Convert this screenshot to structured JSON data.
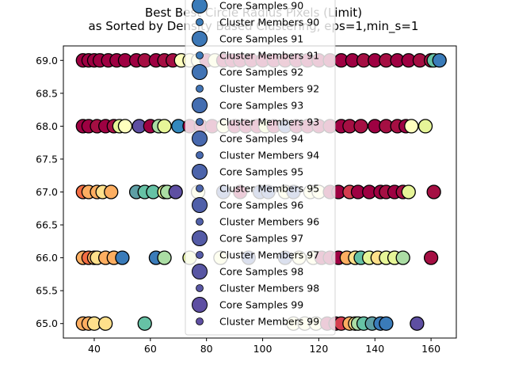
{
  "chart_data": {
    "type": "scatter",
    "title": "Best Best Circle Radius Pixels (Limit)",
    "subtitle": "as Sorted by Density Based Clustering, eps=1,min_s=1",
    "xlabel": "",
    "ylabel": "",
    "xlim": [
      29,
      169
    ],
    "ylim": [
      64.78,
      69.22
    ],
    "x_ticks": [
      "40",
      "60",
      "80",
      "100",
      "120",
      "140",
      "160"
    ],
    "y_ticks": [
      "65.0",
      "65.5",
      "66.0",
      "66.5",
      "67.0",
      "67.5",
      "68.0",
      "68.5",
      "69.0"
    ],
    "grid": false,
    "legend_placement": "upper-center",
    "legend": [
      {
        "label": "Core Samples 90",
        "kind": "core",
        "color": "#3a7bb9"
      },
      {
        "label": "Cluster Members 90",
        "kind": "member",
        "color": "#3a7bb9"
      },
      {
        "label": "Core Samples 91",
        "kind": "core",
        "color": "#3d78b7"
      },
      {
        "label": "Cluster Members 91",
        "kind": "member",
        "color": "#3d78b7"
      },
      {
        "label": "Core Samples 92",
        "kind": "core",
        "color": "#4173b4"
      },
      {
        "label": "Cluster Members 92",
        "kind": "member",
        "color": "#4173b4"
      },
      {
        "label": "Core Samples 93",
        "kind": "core",
        "color": "#446eb1"
      },
      {
        "label": "Cluster Members 93",
        "kind": "member",
        "color": "#446eb1"
      },
      {
        "label": "Core Samples 94",
        "kind": "core",
        "color": "#4869ae"
      },
      {
        "label": "Cluster Members 94",
        "kind": "member",
        "color": "#4869ae"
      },
      {
        "label": "Core Samples 95",
        "kind": "core",
        "color": "#4c64ab"
      },
      {
        "label": "Cluster Members 95",
        "kind": "member",
        "color": "#4c64ab"
      },
      {
        "label": "Core Samples 96",
        "kind": "core",
        "color": "#5060a9"
      },
      {
        "label": "Cluster Members 96",
        "kind": "member",
        "color": "#5060a9"
      },
      {
        "label": "Core Samples 97",
        "kind": "core",
        "color": "#545ba6"
      },
      {
        "label": "Cluster Members 97",
        "kind": "member",
        "color": "#545ba6"
      },
      {
        "label": "Core Samples 98",
        "kind": "core",
        "color": "#5856a3"
      },
      {
        "label": "Cluster Members 98",
        "kind": "member",
        "color": "#5856a3"
      },
      {
        "label": "Core Samples 99",
        "kind": "core",
        "color": "#5e4fa2"
      },
      {
        "label": "Cluster Members 99",
        "kind": "member",
        "color": "#5e4fa2"
      }
    ],
    "series": [
      {
        "y": 69,
        "points": [
          {
            "x": 36,
            "c": "#9e0142"
          },
          {
            "x": 38,
            "c": "#9e0142"
          },
          {
            "x": 40,
            "c": "#9e0142"
          },
          {
            "x": 42,
            "c": "#9e0142"
          },
          {
            "x": 45,
            "c": "#9e0142"
          },
          {
            "x": 48,
            "c": "#9e0142"
          },
          {
            "x": 51,
            "c": "#9e0142"
          },
          {
            "x": 55,
            "c": "#9e0142"
          },
          {
            "x": 58,
            "c": "#a50f43"
          },
          {
            "x": 62,
            "c": "#9e0142"
          },
          {
            "x": 65,
            "c": "#a50f43"
          },
          {
            "x": 68,
            "c": "#a50f43"
          },
          {
            "x": 71,
            "c": "#ffffbe"
          },
          {
            "x": 74,
            "c": "#fbf8b0"
          },
          {
            "x": 77,
            "c": "#f6fbb2"
          },
          {
            "x": 80,
            "c": "#9e0142"
          },
          {
            "x": 83,
            "c": "#f2faae"
          },
          {
            "x": 86,
            "c": "#9e0142"
          },
          {
            "x": 89,
            "c": "#9e0142"
          },
          {
            "x": 92,
            "c": "#9e0142"
          },
          {
            "x": 96,
            "c": "#9e0142"
          },
          {
            "x": 100,
            "c": "#9e0142"
          },
          {
            "x": 104,
            "c": "#9e0142"
          },
          {
            "x": 108,
            "c": "#a50f43"
          },
          {
            "x": 112,
            "c": "#9e0142"
          },
          {
            "x": 116,
            "c": "#9e0142"
          },
          {
            "x": 120,
            "c": "#9e0142"
          },
          {
            "x": 124,
            "c": "#9e0142"
          },
          {
            "x": 128,
            "c": "#9e0142"
          },
          {
            "x": 132,
            "c": "#9e0142"
          },
          {
            "x": 136,
            "c": "#a50f43"
          },
          {
            "x": 140,
            "c": "#9e0142"
          },
          {
            "x": 144,
            "c": "#a50f43"
          },
          {
            "x": 148,
            "c": "#9e0142"
          },
          {
            "x": 152,
            "c": "#9e0142"
          },
          {
            "x": 156,
            "c": "#a50f43"
          },
          {
            "x": 160,
            "c": "#a50f43"
          },
          {
            "x": 161,
            "c": "#66c2a5"
          },
          {
            "x": 163,
            "c": "#3a7bb9"
          }
        ]
      },
      {
        "y": 68,
        "points": [
          {
            "x": 36,
            "c": "#9e0142"
          },
          {
            "x": 38,
            "c": "#9e0142"
          },
          {
            "x": 41,
            "c": "#a50f43"
          },
          {
            "x": 44,
            "c": "#9e0142"
          },
          {
            "x": 47,
            "c": "#a50f43"
          },
          {
            "x": 49,
            "c": "#e6f598"
          },
          {
            "x": 51,
            "c": "#ffffbe"
          },
          {
            "x": 56,
            "c": "#5e4fa2"
          },
          {
            "x": 60,
            "c": "#9e0142"
          },
          {
            "x": 63,
            "c": "#abdda4"
          },
          {
            "x": 65,
            "c": "#e6f598"
          },
          {
            "x": 70,
            "c": "#3288bd"
          },
          {
            "x": 74,
            "c": "#9e0142"
          },
          {
            "x": 78,
            "c": "#9e0142"
          },
          {
            "x": 82,
            "c": "#9e0142"
          },
          {
            "x": 86,
            "c": "#f2faae"
          },
          {
            "x": 90,
            "c": "#9e0142"
          },
          {
            "x": 94,
            "c": "#9e0142"
          },
          {
            "x": 98,
            "c": "#9e0142"
          },
          {
            "x": 101,
            "c": "#e6f598"
          },
          {
            "x": 104,
            "c": "#9e0142"
          },
          {
            "x": 108,
            "c": "#4c64ab"
          },
          {
            "x": 112,
            "c": "#9e0142"
          },
          {
            "x": 116,
            "c": "#9e0142"
          },
          {
            "x": 120,
            "c": "#9e0142"
          },
          {
            "x": 124,
            "c": "#9e0142"
          },
          {
            "x": 128,
            "c": "#9e0142"
          },
          {
            "x": 131,
            "c": "#a50f43"
          },
          {
            "x": 135,
            "c": "#a50f43"
          },
          {
            "x": 140,
            "c": "#9e0142"
          },
          {
            "x": 144,
            "c": "#a50f43"
          },
          {
            "x": 148,
            "c": "#a50f43"
          },
          {
            "x": 151,
            "c": "#9e0142"
          },
          {
            "x": 153,
            "c": "#ffffbe"
          },
          {
            "x": 158,
            "c": "#e6f598"
          }
        ]
      },
      {
        "y": 67,
        "points": [
          {
            "x": 36,
            "c": "#f46d43"
          },
          {
            "x": 38,
            "c": "#fdae61"
          },
          {
            "x": 41,
            "c": "#fdae61"
          },
          {
            "x": 43,
            "c": "#fee08b"
          },
          {
            "x": 46,
            "c": "#fdae61"
          },
          {
            "x": 55,
            "c": "#5e9fa5"
          },
          {
            "x": 58,
            "c": "#66c2a5"
          },
          {
            "x": 61,
            "c": "#66c2a5"
          },
          {
            "x": 65,
            "c": "#e6f598"
          },
          {
            "x": 66,
            "c": "#abdda4"
          },
          {
            "x": 69,
            "c": "#5e4fa2"
          },
          {
            "x": 77,
            "c": "#f2faae"
          },
          {
            "x": 86,
            "c": "#4c64ab"
          },
          {
            "x": 92,
            "c": "#9e0142"
          },
          {
            "x": 99,
            "c": "#4c64ab"
          },
          {
            "x": 102,
            "c": "#4c64ab"
          },
          {
            "x": 108,
            "c": "#ffffbe"
          },
          {
            "x": 111,
            "c": "#4c64ab"
          },
          {
            "x": 117,
            "c": "#ffffbe"
          },
          {
            "x": 120,
            "c": "#ffffbe"
          },
          {
            "x": 124,
            "c": "#9e0142"
          },
          {
            "x": 127,
            "c": "#9e0142"
          },
          {
            "x": 131,
            "c": "#d53e4f"
          },
          {
            "x": 134,
            "c": "#9e0142"
          },
          {
            "x": 138,
            "c": "#9e0142"
          },
          {
            "x": 142,
            "c": "#9e0142"
          },
          {
            "x": 144,
            "c": "#a50f43"
          },
          {
            "x": 147,
            "c": "#9e0142"
          },
          {
            "x": 150,
            "c": "#a50f43"
          },
          {
            "x": 152,
            "c": "#e6f598"
          },
          {
            "x": 161,
            "c": "#a50f43"
          }
        ]
      },
      {
        "y": 66,
        "points": [
          {
            "x": 36,
            "c": "#fdae61"
          },
          {
            "x": 38,
            "c": "#f46d43"
          },
          {
            "x": 40,
            "c": "#fdae61"
          },
          {
            "x": 41,
            "c": "#fee08b"
          },
          {
            "x": 44,
            "c": "#fdae61"
          },
          {
            "x": 47,
            "c": "#fdae61"
          },
          {
            "x": 50,
            "c": "#3a7bb9"
          },
          {
            "x": 62,
            "c": "#3a7bb9"
          },
          {
            "x": 65,
            "c": "#abdda4"
          },
          {
            "x": 74,
            "c": "#e6f598"
          },
          {
            "x": 85,
            "c": "#f2faae"
          },
          {
            "x": 95,
            "c": "#4c64ab"
          },
          {
            "x": 108,
            "c": "#4c64ab"
          },
          {
            "x": 113,
            "c": "#ffffbe"
          },
          {
            "x": 118,
            "c": "#ffffbe"
          },
          {
            "x": 121,
            "c": "#9e0142"
          },
          {
            "x": 124,
            "c": "#9e0142"
          },
          {
            "x": 127,
            "c": "#9e0142"
          },
          {
            "x": 130,
            "c": "#fdae61"
          },
          {
            "x": 133,
            "c": "#fee08b"
          },
          {
            "x": 135,
            "c": "#66c2a5"
          },
          {
            "x": 138,
            "c": "#e6f598"
          },
          {
            "x": 141,
            "c": "#fee08b"
          },
          {
            "x": 144,
            "c": "#e6f598"
          },
          {
            "x": 147,
            "c": "#e6f598"
          },
          {
            "x": 150,
            "c": "#abdda4"
          },
          {
            "x": 160,
            "c": "#a50f43"
          }
        ]
      },
      {
        "y": 65,
        "points": [
          {
            "x": 36,
            "c": "#fdae61"
          },
          {
            "x": 38,
            "c": "#fdae61"
          },
          {
            "x": 40,
            "c": "#fee08b"
          },
          {
            "x": 44,
            "c": "#fee08b"
          },
          {
            "x": 58,
            "c": "#66c2a5"
          },
          {
            "x": 111,
            "c": "#ffffbe"
          },
          {
            "x": 115,
            "c": "#ffffbe"
          },
          {
            "x": 119,
            "c": "#ffffbe"
          },
          {
            "x": 123,
            "c": "#9e0142"
          },
          {
            "x": 126,
            "c": "#9e0142"
          },
          {
            "x": 128,
            "c": "#d53e4f"
          },
          {
            "x": 131,
            "c": "#fdae61"
          },
          {
            "x": 133,
            "c": "#fee08b"
          },
          {
            "x": 134,
            "c": "#abdda4"
          },
          {
            "x": 136,
            "c": "#66c2a5"
          },
          {
            "x": 139,
            "c": "#5e9fa5"
          },
          {
            "x": 142,
            "c": "#3a7bb9"
          },
          {
            "x": 144,
            "c": "#3a7bb9"
          },
          {
            "x": 155,
            "c": "#5e4fa2"
          }
        ]
      }
    ]
  }
}
